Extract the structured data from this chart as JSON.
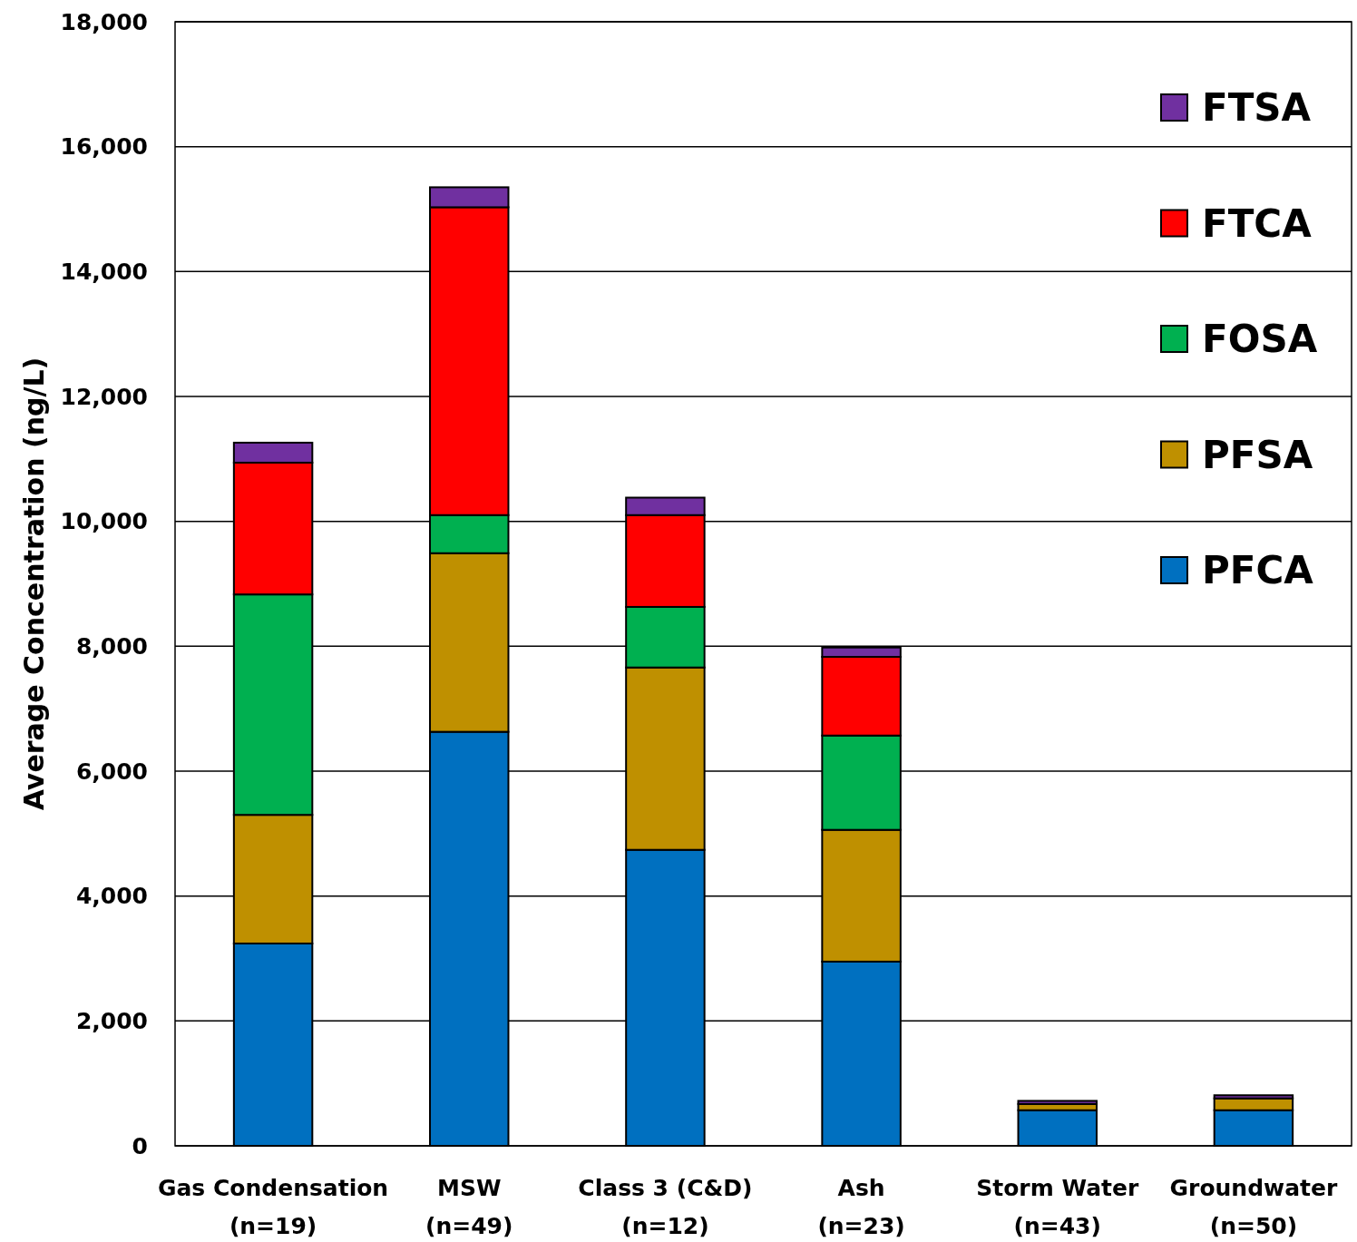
{
  "chart_data": {
    "type": "bar",
    "stacked": true,
    "ylabel": "Average Concentration (ng/L)",
    "categories": [
      "Gas Condensation\n(n=19)",
      "MSW\n(n=49)",
      "Class 3 (C&D)\n(n=12)",
      "Ash\n(n=23)",
      "Storm Water\n(n=43)",
      "Groundwater\n(n=50)"
    ],
    "series": [
      {
        "name": "PFCA",
        "color": "#0070c0",
        "values": [
          3240,
          6630,
          4740,
          2950,
          570,
          570
        ]
      },
      {
        "name": "PFSA",
        "color": "#bf9000",
        "values": [
          2060,
          2860,
          2920,
          2110,
          100,
          190
        ]
      },
      {
        "name": "FOSA",
        "color": "#00b050",
        "values": [
          3530,
          610,
          970,
          1510,
          null,
          null
        ]
      },
      {
        "name": "FTCA",
        "color": "#ff0000",
        "values": [
          2110,
          4930,
          1470,
          1260,
          null,
          null
        ]
      },
      {
        "name": "FTSA",
        "color": "#7030a0",
        "values": [
          320,
          320,
          280,
          150,
          50,
          50
        ]
      }
    ],
    "ylim": [
      0,
      18000
    ],
    "yticks": [
      {
        "value": 0,
        "label": "0"
      },
      {
        "value": 2000,
        "label": "2,000"
      },
      {
        "value": 4000,
        "label": "4,000"
      },
      {
        "value": 6000,
        "label": "6,000"
      },
      {
        "value": 8000,
        "label": "8,000"
      },
      {
        "value": 10000,
        "label": "10,000"
      },
      {
        "value": 12000,
        "label": "12,000"
      },
      {
        "value": 14000,
        "label": "14,000"
      },
      {
        "value": 16000,
        "label": "16,000"
      },
      {
        "value": 18000,
        "label": "18,000"
      }
    ],
    "grid": "y",
    "legend": "top right"
  }
}
